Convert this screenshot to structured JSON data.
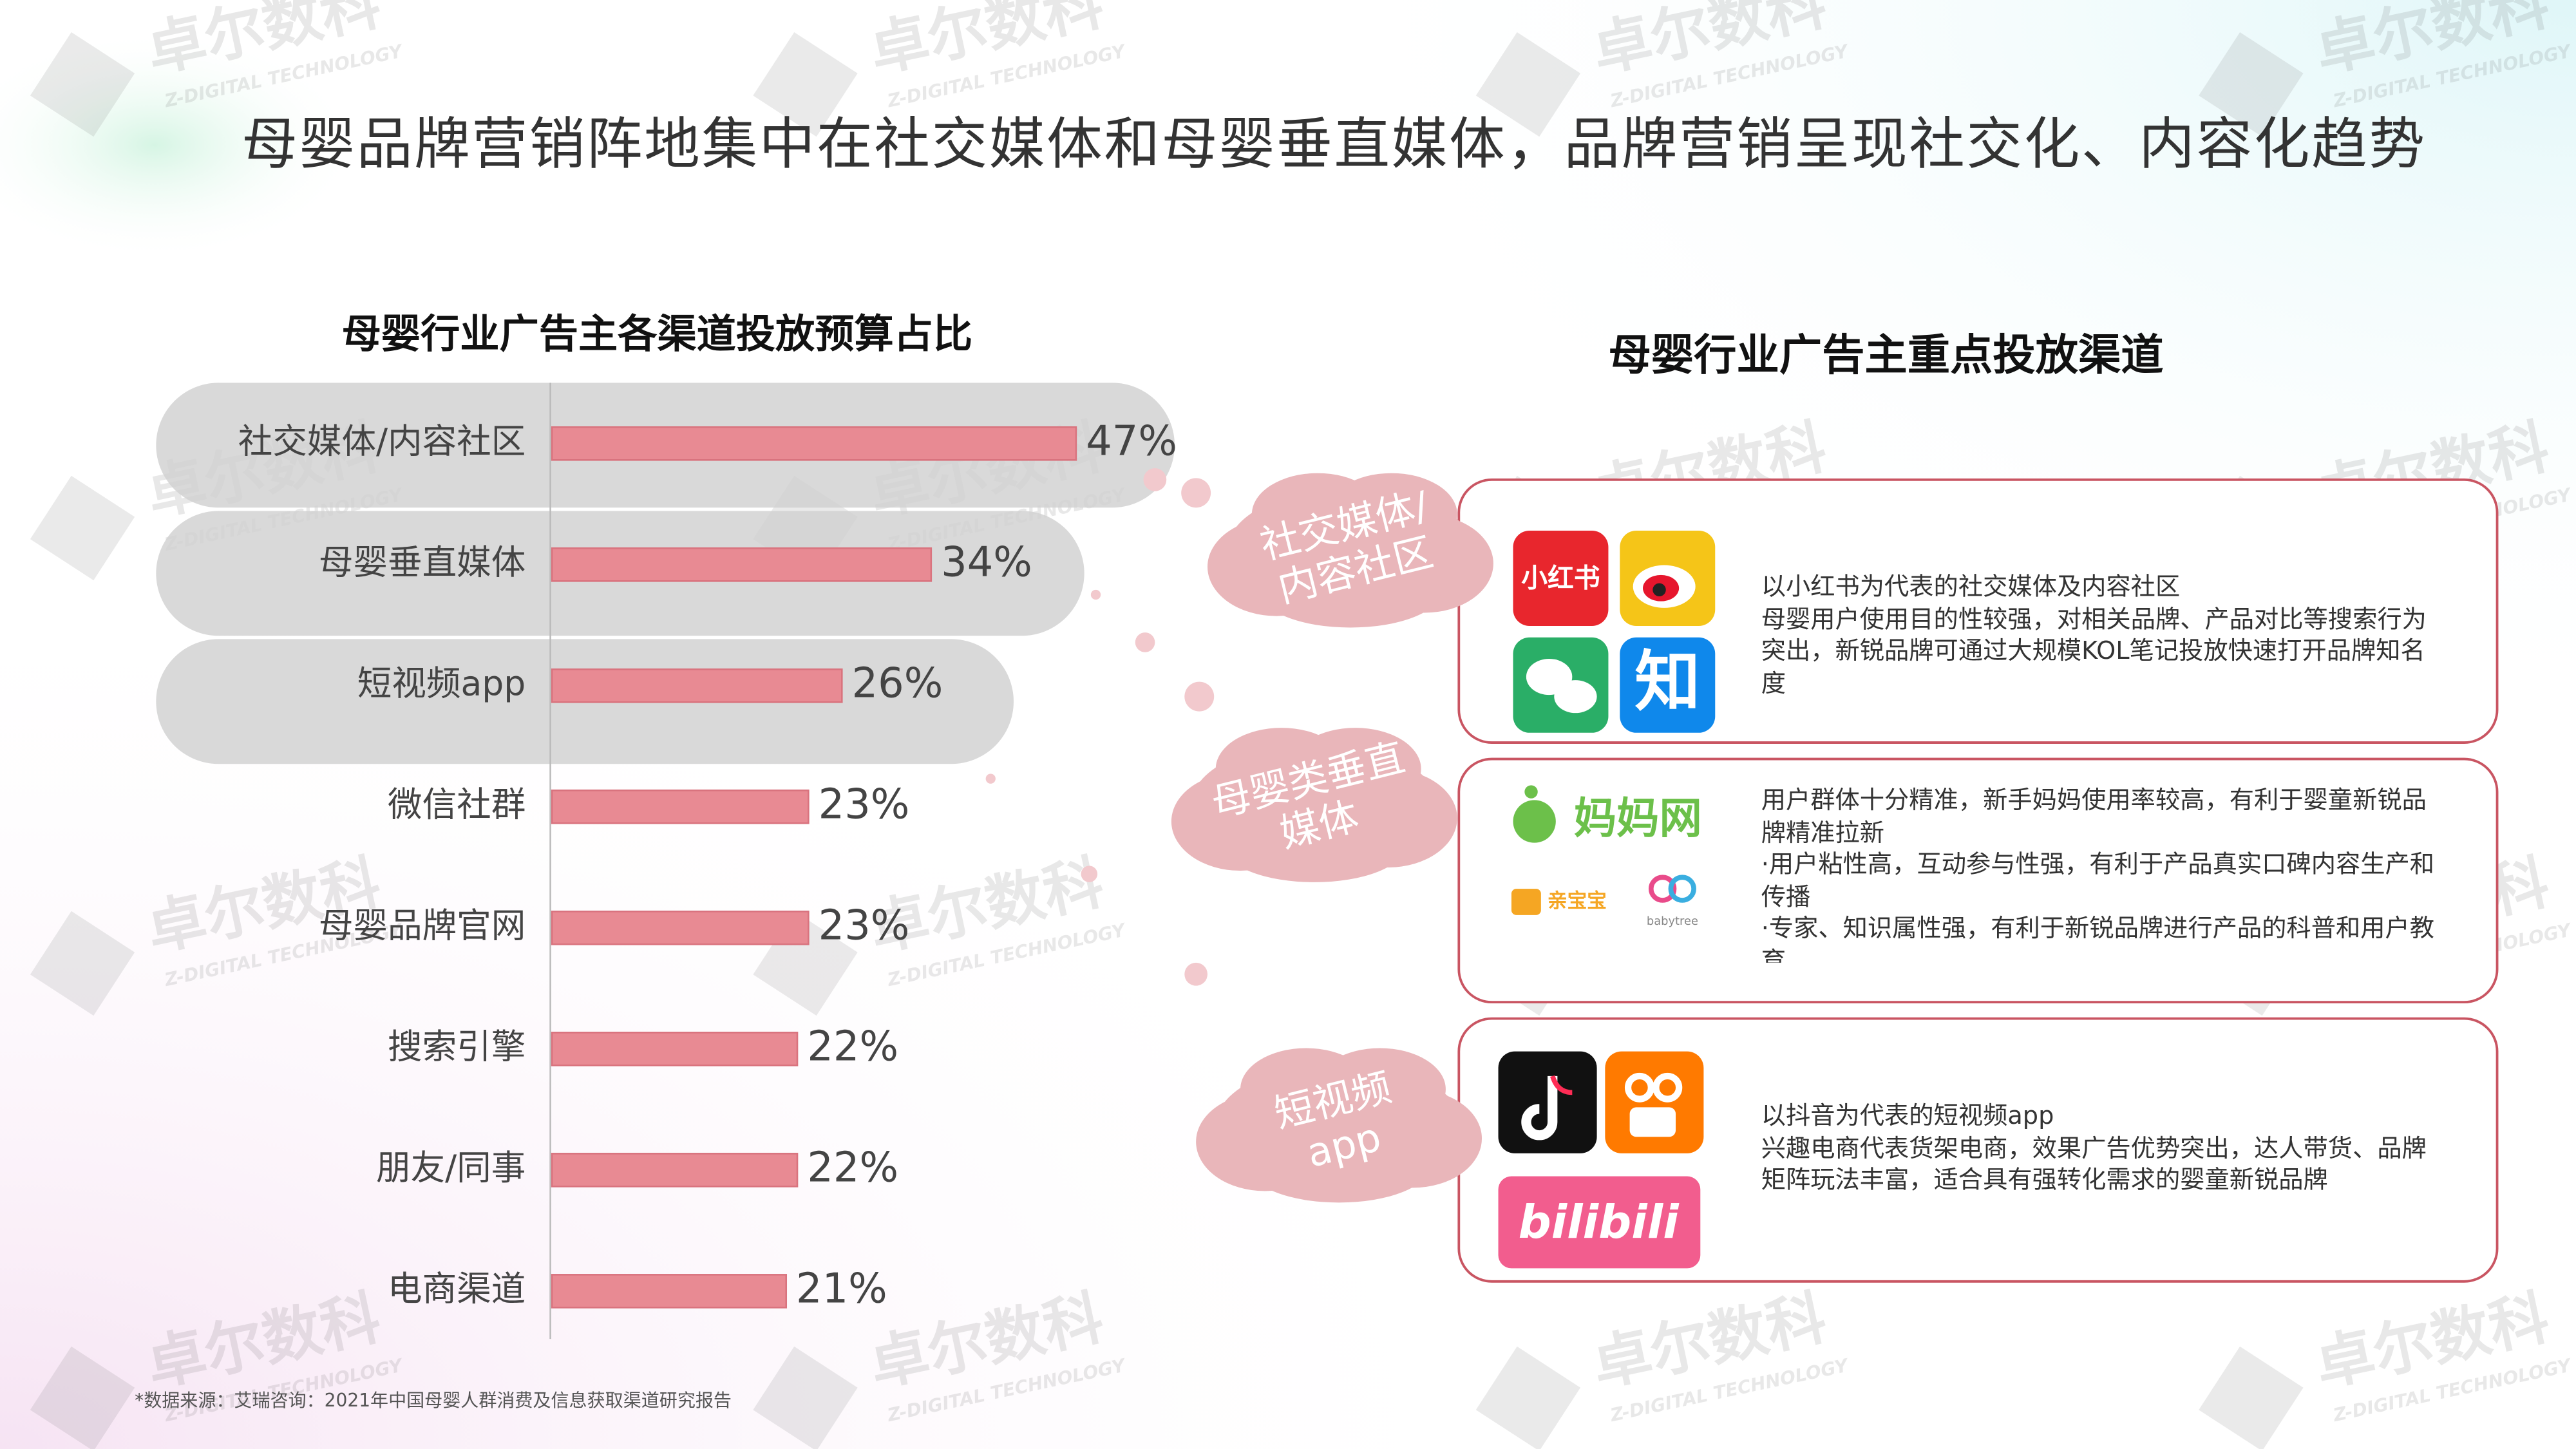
{
  "page": {
    "title": "母婴品牌营销阵地集中在社交媒体和母婴垂直媒体，品牌营销呈现社交化、内容化趋势",
    "source": "*数据来源：艾瑞咨询：2021年中国母婴人群消费及信息获取渠道研究报告",
    "watermark": {
      "name": "卓尔数科",
      "sub": "Z-DIGITAL TECHNOLOGY"
    }
  },
  "chart_data": {
    "type": "bar",
    "orientation": "horizontal",
    "title": "母婴行业广告主各渠道投放预算占比",
    "categories": [
      "社交媒体/内容社区",
      "母婴垂直媒体",
      "短视频app",
      "微信社群",
      "母婴品牌官网",
      "搜索引擎",
      "朋友/同事",
      "电商渠道"
    ],
    "values": [
      47,
      34,
      26,
      23,
      23,
      22,
      22,
      21
    ],
    "value_labels": [
      "47%",
      "34%",
      "26%",
      "23%",
      "23%",
      "22%",
      "22%",
      "21%"
    ],
    "color": "#e88a93"
  },
  "panel": {
    "title": "母婴行业广告主重点投放渠道",
    "channels": [
      {
        "label": [
          "社交媒体/",
          "内容社区"
        ],
        "logos": [
          "小红书",
          "知"
        ],
        "lines": [
          "以小红书为代表的社交媒体及内容社区",
          "母婴用户使用目的性较强，对相关品牌、产品对比等搜索行为突出，新锐品牌可通过大规模KOL笔记投放快速打开品牌知名度"
        ]
      },
      {
        "label": [
          "母婴类垂直",
          "媒体"
        ],
        "logos": [
          "妈妈网",
          "亲宝宝",
          "babytree"
        ],
        "lines": [
          "用户群体十分精准，新手妈妈使用率较高，有利于婴童新锐品牌精准拉新",
          "·用户粘性高，互动参与性强，有利于产品真实口碑内容生产和传播",
          "·专家、知识属性强，有利于新锐品牌进行产品的科普和用户教育"
        ]
      },
      {
        "label": [
          "短视频",
          "app"
        ],
        "logos": [
          "bilibili"
        ],
        "lines": [
          "以抖音为代表的短视频app",
          "兴趣电商代表货架电商，效果广告优势突出，达人带货、品牌矩阵玩法丰富，适合具有强转化需求的婴童新锐品牌"
        ]
      }
    ]
  }
}
